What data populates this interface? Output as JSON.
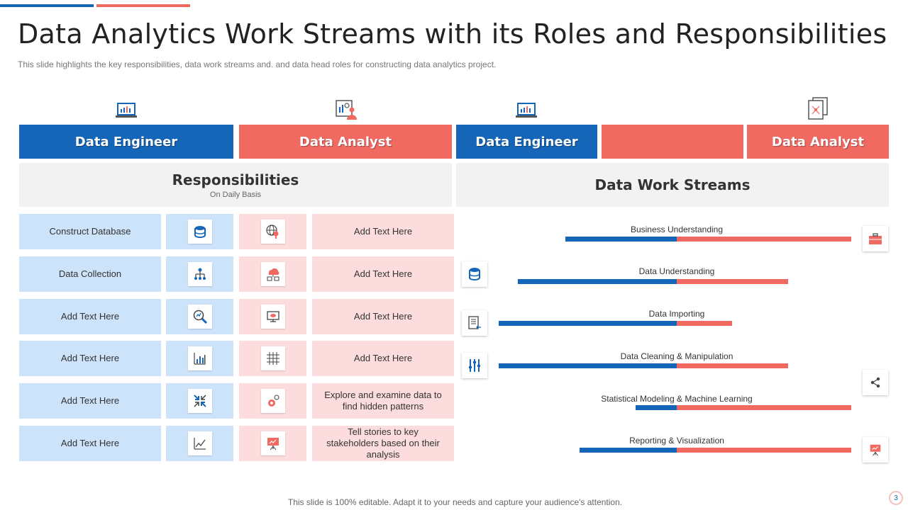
{
  "title": "Data Analytics Work Streams with its Roles and Responsibilities",
  "subtitle": "This slide highlights the key responsibilities, data work streams and. and data head roles for  constructing data analytics project.",
  "roles": [
    "Data Engineer",
    "Data Analyst",
    "Data Engineer",
    "",
    "Data Analyst"
  ],
  "responsibilities": {
    "title": "Responsibilities",
    "subtitle": "On Daily Basis",
    "engineer_items": [
      "Construct Database",
      "Data Collection",
      "Add Text Here",
      "Add Text Here",
      "Add Text Here",
      "Add Text Here"
    ],
    "engineer_icons": [
      "database-icon",
      "hierarchy-icon",
      "search-analytics-icon",
      "bar-chart-icon",
      "collapse-arrows-icon",
      "line-chart-icon"
    ],
    "analyst_icons": [
      "globe-search-icon",
      "cloud-network-icon",
      "monitor-eye-icon",
      "grid-icon",
      "gear-cluster-icon",
      "presentation-board-icon"
    ],
    "analyst_items": [
      "Add Text Here",
      "Add Text Here",
      "Add Text Here",
      "Add Text Here",
      "Explore and examine data to find hidden patterns",
      "Tell stories to key stakeholders based on their analysis"
    ]
  },
  "streams": {
    "title": "Data Work Streams",
    "items": [
      {
        "label": "Business Understanding",
        "engineer": 0.7,
        "analyst": 1.1
      },
      {
        "label": "Data Understanding",
        "engineer": 1.0,
        "analyst": 0.7
      },
      {
        "label": "Data Importing",
        "engineer": 1.12,
        "analyst": 0.35
      },
      {
        "label": "Data Cleaning & Manipulation",
        "engineer": 1.12,
        "analyst": 0.7
      },
      {
        "label": "Statistical Modeling & Machine Learning",
        "engineer": 0.26,
        "analyst": 1.1
      },
      {
        "label": "Reporting & Visualization",
        "engineer": 0.61,
        "analyst": 1.1
      }
    ]
  },
  "colors": {
    "blue": "#1565b8",
    "red": "#f06a62"
  },
  "footer": "This slide is 100% editable. Adapt it to your needs and capture your audience's attention.",
  "page_number": "3"
}
